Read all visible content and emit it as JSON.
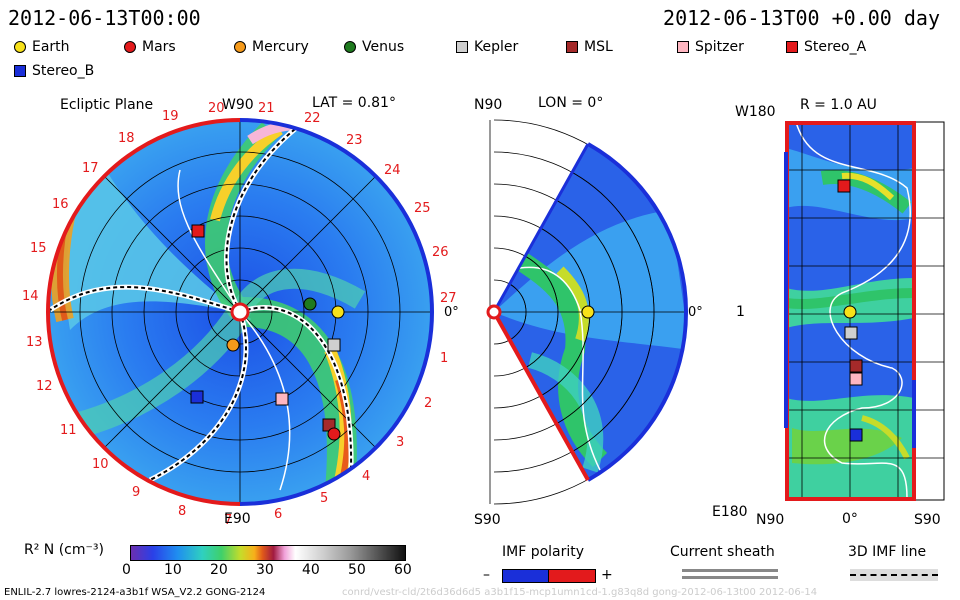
{
  "header": {
    "left_time": "2012-06-13T00:00",
    "right_time": "2012-06-13T00 +0.00 day"
  },
  "legend": [
    {
      "label": "Earth",
      "color": "#f7e11a",
      "shape": "circle"
    },
    {
      "label": "Mars",
      "color": "#e31a1c",
      "shape": "circle"
    },
    {
      "label": "Mercury",
      "color": "#f59a1b",
      "shape": "circle"
    },
    {
      "label": "Venus",
      "color": "#1f7a1f",
      "shape": "circle"
    },
    {
      "label": "Kepler",
      "color": "#cfcfcf",
      "shape": "square"
    },
    {
      "label": "MSL",
      "color": "#a52a2a",
      "shape": "square"
    },
    {
      "label": "Spitzer",
      "color": "#ffb6c1",
      "shape": "square"
    },
    {
      "label": "Stereo_A",
      "color": "#e31a1c",
      "shape": "square"
    },
    {
      "label": "Stereo_B",
      "color": "#1a2fd9",
      "shape": "square"
    }
  ],
  "ecliptic": {
    "title": "Ecliptic Plane",
    "top_label": "W90",
    "lat_label": "LAT = 0.81°",
    "bottom_label": "E90",
    "right_label": "0°",
    "sectors": [
      "1",
      "2",
      "3",
      "4",
      "5",
      "6",
      "7",
      "8",
      "9",
      "10",
      "11",
      "12",
      "13",
      "14",
      "15",
      "16",
      "17",
      "18",
      "19",
      "20",
      "21",
      "22",
      "23",
      "24",
      "25",
      "26",
      "27"
    ]
  },
  "meridional": {
    "top_left": "N90",
    "lon_label": "LON = 0°",
    "right_label": "0°",
    "bottom_left": "S90"
  },
  "map": {
    "title": "R = 1.0 AU",
    "top_left": "W180",
    "mid_left": "1",
    "bottom_left": "E180",
    "x_labels": [
      "N90",
      "0°",
      "S90"
    ]
  },
  "colorbar": {
    "label": "R² N (cm⁻³)",
    "ticks": [
      "0",
      "10",
      "20",
      "30",
      "40",
      "50",
      "60"
    ]
  },
  "imf": {
    "title": "IMF polarity",
    "minus": "–",
    "plus": "+"
  },
  "sheath": {
    "title": "Current sheath"
  },
  "imfline": {
    "title": "3D IMF line"
  },
  "footer": {
    "left": "ENLIL-2.7 lowres-2124-a3b1f WSA_V2.2 GONG-2124",
    "right": "conrd/vestr-cld/2t6d36d6d5 a3b1f15-mcp1umn1cd-1.g83q8d gong-2012-06-13t00  2012-06-14"
  }
}
